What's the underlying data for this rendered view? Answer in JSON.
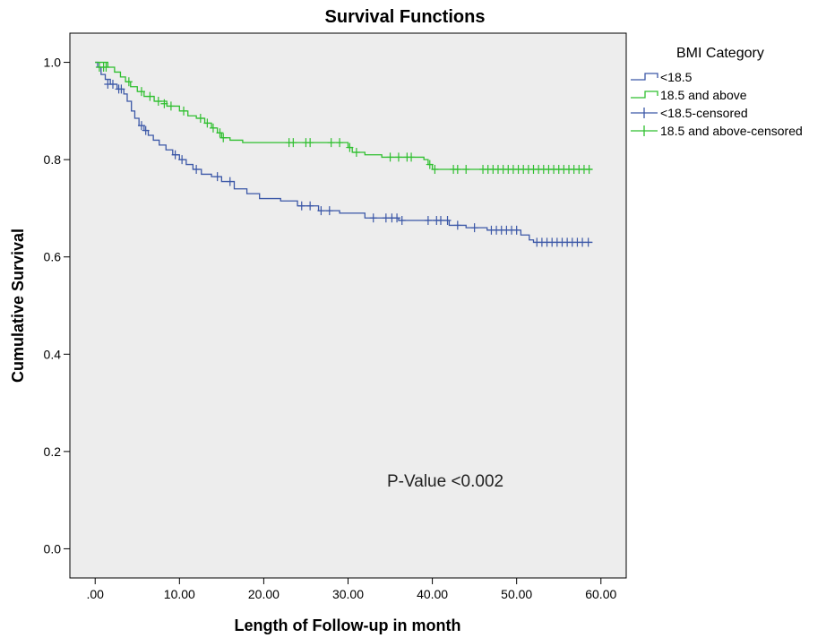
{
  "chart_data": {
    "type": "line",
    "title": "Survival Functions",
    "xlabel": "Length of Follow-up in month",
    "ylabel": "Cumulative  Survival",
    "xlim": [
      -3,
      63
    ],
    "ylim": [
      -0.06,
      1.06
    ],
    "x_ticks": [
      0,
      10,
      20,
      30,
      40,
      50,
      60
    ],
    "x_tick_labels": [
      ".00",
      "10.00",
      "20.00",
      "30.00",
      "40.00",
      "50.00",
      "60.00"
    ],
    "y_ticks": [
      0,
      0.2,
      0.4,
      0.6,
      0.8,
      1.0
    ],
    "y_tick_labels": [
      "0.0",
      "0.2",
      "0.4",
      "0.6",
      "0.8",
      "1.0"
    ],
    "grid": false,
    "plot_background": "#ededed",
    "legend": {
      "title": "BMI Category",
      "position": "right",
      "entries": [
        {
          "label": "<18.5",
          "color": "#3b57a7",
          "marker": "step"
        },
        {
          "label": "18.5 and above",
          "color": "#2fbf2f",
          "marker": "step"
        },
        {
          "label": "<18.5-censored",
          "color": "#3b57a7",
          "marker": "plus"
        },
        {
          "label": "18.5 and above-censored",
          "color": "#2fbf2f",
          "marker": "plus"
        }
      ]
    },
    "annotation": "P-Value <0.002",
    "series": [
      {
        "name": "<18.5",
        "color": "#3b57a7",
        "steps": [
          [
            0,
            1.0
          ],
          [
            0.3,
            0.99
          ],
          [
            0.7,
            0.975
          ],
          [
            1.2,
            0.965
          ],
          [
            1.8,
            0.955
          ],
          [
            2.6,
            0.945
          ],
          [
            3.4,
            0.935
          ],
          [
            3.8,
            0.92
          ],
          [
            4.3,
            0.9
          ],
          [
            4.7,
            0.885
          ],
          [
            5.2,
            0.87
          ],
          [
            5.8,
            0.86
          ],
          [
            6.3,
            0.85
          ],
          [
            6.9,
            0.84
          ],
          [
            7.6,
            0.83
          ],
          [
            8.4,
            0.82
          ],
          [
            9.2,
            0.81
          ],
          [
            10.0,
            0.8
          ],
          [
            10.8,
            0.79
          ],
          [
            11.6,
            0.78
          ],
          [
            12.6,
            0.77
          ],
          [
            13.8,
            0.765
          ],
          [
            15.0,
            0.755
          ],
          [
            16.5,
            0.74
          ],
          [
            18.0,
            0.73
          ],
          [
            19.5,
            0.72
          ],
          [
            22.0,
            0.715
          ],
          [
            24.0,
            0.705
          ],
          [
            26.5,
            0.695
          ],
          [
            29.0,
            0.69
          ],
          [
            32.0,
            0.68
          ],
          [
            36.0,
            0.675
          ],
          [
            42.0,
            0.665
          ],
          [
            44.0,
            0.66
          ],
          [
            46.5,
            0.655
          ],
          [
            50.5,
            0.645
          ],
          [
            51.5,
            0.635
          ],
          [
            52.0,
            0.63
          ],
          [
            59.0,
            0.63
          ]
        ],
        "censored": [
          [
            1.5,
            0.955
          ],
          [
            2.1,
            0.955
          ],
          [
            2.8,
            0.945
          ],
          [
            3.1,
            0.945
          ],
          [
            5.5,
            0.87
          ],
          [
            6.0,
            0.86
          ],
          [
            9.5,
            0.81
          ],
          [
            10.3,
            0.8
          ],
          [
            12.0,
            0.78
          ],
          [
            14.5,
            0.765
          ],
          [
            16.0,
            0.755
          ],
          [
            24.5,
            0.705
          ],
          [
            25.5,
            0.705
          ],
          [
            26.8,
            0.695
          ],
          [
            27.8,
            0.695
          ],
          [
            33.0,
            0.68
          ],
          [
            34.5,
            0.68
          ],
          [
            35.2,
            0.68
          ],
          [
            35.8,
            0.68
          ],
          [
            36.4,
            0.675
          ],
          [
            39.5,
            0.675
          ],
          [
            40.5,
            0.675
          ],
          [
            41.0,
            0.675
          ],
          [
            41.8,
            0.675
          ],
          [
            43.0,
            0.665
          ],
          [
            45.0,
            0.66
          ],
          [
            47.0,
            0.655
          ],
          [
            47.6,
            0.655
          ],
          [
            48.2,
            0.655
          ],
          [
            48.8,
            0.655
          ],
          [
            49.4,
            0.655
          ],
          [
            50.0,
            0.655
          ],
          [
            52.4,
            0.63
          ],
          [
            53.0,
            0.63
          ],
          [
            53.6,
            0.63
          ],
          [
            54.2,
            0.63
          ],
          [
            54.8,
            0.63
          ],
          [
            55.4,
            0.63
          ],
          [
            56.0,
            0.63
          ],
          [
            56.6,
            0.63
          ],
          [
            57.2,
            0.63
          ],
          [
            57.8,
            0.63
          ],
          [
            58.5,
            0.63
          ]
        ]
      },
      {
        "name": "18.5 and above",
        "color": "#2fbf2f",
        "steps": [
          [
            0,
            1.0
          ],
          [
            1.5,
            0.99
          ],
          [
            2.3,
            0.98
          ],
          [
            3.0,
            0.97
          ],
          [
            3.6,
            0.96
          ],
          [
            4.2,
            0.95
          ],
          [
            5.0,
            0.94
          ],
          [
            5.8,
            0.93
          ],
          [
            7.0,
            0.92
          ],
          [
            8.5,
            0.91
          ],
          [
            10.0,
            0.9
          ],
          [
            11.0,
            0.89
          ],
          [
            12.0,
            0.885
          ],
          [
            13.0,
            0.875
          ],
          [
            13.8,
            0.865
          ],
          [
            14.5,
            0.855
          ],
          [
            15.0,
            0.845
          ],
          [
            16.0,
            0.84
          ],
          [
            17.5,
            0.835
          ],
          [
            30.0,
            0.825
          ],
          [
            30.5,
            0.815
          ],
          [
            32.0,
            0.81
          ],
          [
            34.0,
            0.805
          ],
          [
            39.0,
            0.8
          ],
          [
            39.5,
            0.79
          ],
          [
            40.0,
            0.78
          ],
          [
            41.0,
            0.78
          ],
          [
            59.0,
            0.78
          ]
        ],
        "censored": [
          [
            0.5,
            0.99
          ],
          [
            1.0,
            0.99
          ],
          [
            1.3,
            0.99
          ],
          [
            4.0,
            0.96
          ],
          [
            5.5,
            0.94
          ],
          [
            6.5,
            0.93
          ],
          [
            7.5,
            0.92
          ],
          [
            8.2,
            0.915
          ],
          [
            9.0,
            0.91
          ],
          [
            10.5,
            0.9
          ],
          [
            12.5,
            0.885
          ],
          [
            13.3,
            0.875
          ],
          [
            14.0,
            0.865
          ],
          [
            14.8,
            0.855
          ],
          [
            15.2,
            0.845
          ],
          [
            23.0,
            0.835
          ],
          [
            23.5,
            0.835
          ],
          [
            25.0,
            0.835
          ],
          [
            25.5,
            0.835
          ],
          [
            28.0,
            0.835
          ],
          [
            29.0,
            0.835
          ],
          [
            30.2,
            0.825
          ],
          [
            31.0,
            0.815
          ],
          [
            35.0,
            0.805
          ],
          [
            36.0,
            0.805
          ],
          [
            37.0,
            0.805
          ],
          [
            37.5,
            0.805
          ],
          [
            39.7,
            0.79
          ],
          [
            40.3,
            0.78
          ],
          [
            42.5,
            0.78
          ],
          [
            43.0,
            0.78
          ],
          [
            44.0,
            0.78
          ],
          [
            46.0,
            0.78
          ],
          [
            46.6,
            0.78
          ],
          [
            47.2,
            0.78
          ],
          [
            47.8,
            0.78
          ],
          [
            48.4,
            0.78
          ],
          [
            49.0,
            0.78
          ],
          [
            49.6,
            0.78
          ],
          [
            50.2,
            0.78
          ],
          [
            50.8,
            0.78
          ],
          [
            51.4,
            0.78
          ],
          [
            52.0,
            0.78
          ],
          [
            52.6,
            0.78
          ],
          [
            53.2,
            0.78
          ],
          [
            53.8,
            0.78
          ],
          [
            54.4,
            0.78
          ],
          [
            55.0,
            0.78
          ],
          [
            55.6,
            0.78
          ],
          [
            56.2,
            0.78
          ],
          [
            56.8,
            0.78
          ],
          [
            57.4,
            0.78
          ],
          [
            58.0,
            0.78
          ],
          [
            58.6,
            0.78
          ]
        ]
      }
    ]
  }
}
